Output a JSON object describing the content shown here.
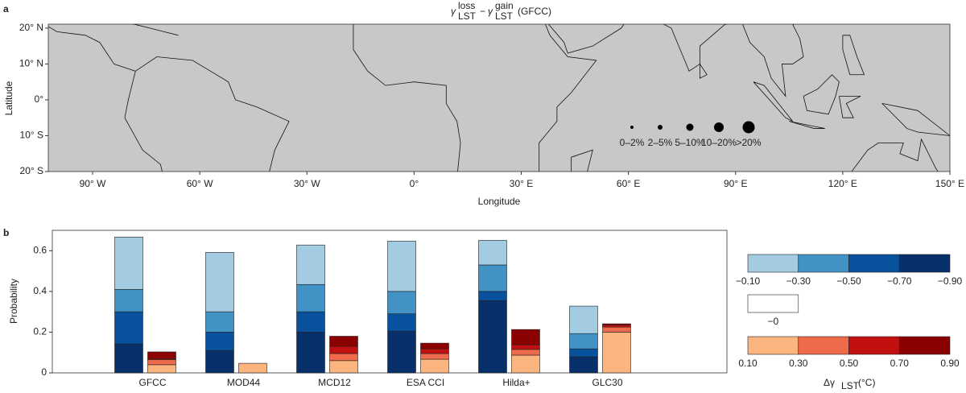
{
  "panel_labels": [
    "a",
    "b"
  ],
  "chart_data": [
    {
      "type": "map",
      "title": [
        "γ",
        "loss",
        "LST",
        "−",
        "γ",
        "gain",
        "LST",
        "(GFCC)"
      ],
      "x_label": "Longitude",
      "y_label": "Latitude",
      "xlim": [
        -102.4,
        150
      ],
      "ylim": [
        -20,
        21.1
      ],
      "xticks": [
        {
          "value": -90,
          "label": "90° W"
        },
        {
          "value": -60,
          "label": "60° W"
        },
        {
          "value": -30,
          "label": "30° W"
        },
        {
          "value": 0,
          "label": "0°"
        },
        {
          "value": 30,
          "label": "30° E"
        },
        {
          "value": 60,
          "label": "60° E"
        },
        {
          "value": 90,
          "label": "90° E"
        },
        {
          "value": 120,
          "label": "120° E"
        },
        {
          "value": 150,
          "label": "150° E"
        }
      ],
      "yticks": [
        {
          "value": 20,
          "label": "20° N"
        },
        {
          "value": 10,
          "label": "10° N"
        },
        {
          "value": 0,
          "label": "0°"
        },
        {
          "value": -10,
          "label": "10° S"
        },
        {
          "value": -20,
          "label": "20° S"
        }
      ],
      "size_legend": [
        "0–2%",
        "2–5%",
        "5–10%",
        "10–20%",
        ">20%"
      ]
    },
    {
      "type": "bar",
      "y_label": "Probability",
      "categories": [
        "GFCC",
        "MOD44",
        "MCD12",
        "ESA CCI",
        "Hilda+",
        "GLC30"
      ],
      "ylim": [
        0,
        0.7
      ],
      "yticks": [
        0,
        0.2,
        0.4,
        0.6
      ],
      "series": [
        {
          "group": "loss",
          "color": "#08306b",
          "values": [
            0.142,
            0.11,
            0.2,
            0.205,
            0.355,
            0.079
          ]
        },
        {
          "group": "loss",
          "color": "#08519c",
          "values": [
            0.158,
            0.09,
            0.1,
            0.085,
            0.045,
            0.039
          ]
        },
        {
          "group": "loss",
          "color": "#4292c6",
          "values": [
            0.11,
            0.1,
            0.134,
            0.11,
            0.13,
            0.075
          ]
        },
        {
          "group": "loss",
          "color": "#a3cce3",
          "values": [
            0.257,
            0.292,
            0.194,
            0.247,
            0.121,
            0.135
          ]
        },
        {
          "group": "gain",
          "color": "#fcb57e",
          "values": [
            0.04,
            0.047,
            0.06,
            0.067,
            0.087,
            0.2
          ]
        },
        {
          "group": "gain",
          "color": "#ee6a4b",
          "values": [
            0.025,
            0,
            0.035,
            0.028,
            0.028,
            0.025
          ]
        },
        {
          "group": "gain",
          "color": "#c21010",
          "values": [
            0.005,
            0,
            0.035,
            0.023,
            0.023,
            0.01
          ]
        },
        {
          "group": "gain",
          "color": "#8b0000",
          "values": [
            0.033,
            0,
            0.05,
            0.028,
            0.075,
            0.006
          ]
        }
      ],
      "colorbar": {
        "loss_ticks": [
          {
            "value": -0.1,
            "label": "−0.10"
          },
          {
            "value": -0.3,
            "label": "−0.30"
          },
          {
            "value": -0.5,
            "label": "−0.50"
          },
          {
            "value": -0.7,
            "label": "−0.70"
          },
          {
            "value": -0.9,
            "label": "−0.90"
          }
        ],
        "zero_tick": {
          "value": 0,
          "label": "−0"
        },
        "gain_ticks": [
          {
            "value": 0.1,
            "label": "0.10"
          },
          {
            "value": 0.3,
            "label": "0.30"
          },
          {
            "value": 0.5,
            "label": "0.50"
          },
          {
            "value": 0.7,
            "label": "0.70"
          },
          {
            "value": 0.9,
            "label": "0.90"
          }
        ],
        "label": [
          "Δγ",
          "LST",
          "(°C)"
        ]
      }
    }
  ]
}
